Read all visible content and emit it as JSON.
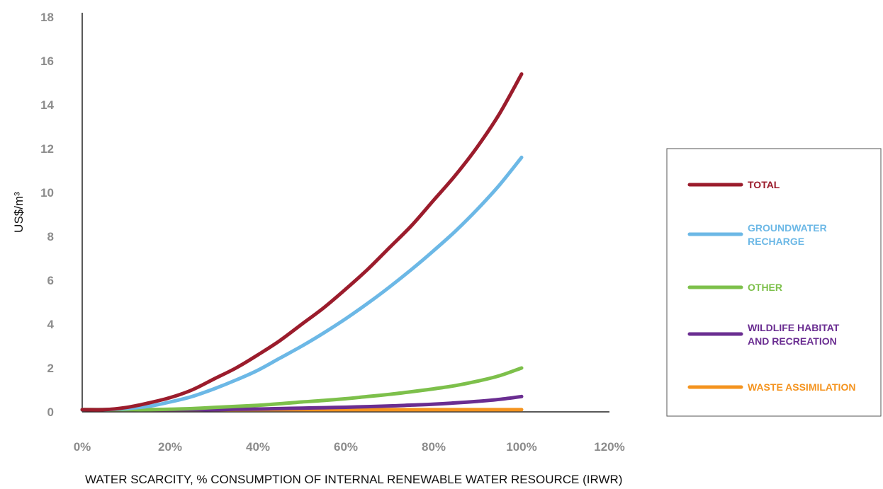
{
  "chart_data": {
    "type": "line",
    "title": "",
    "xlabel": "WATER SCARCITY, % CONSUMPTION OF INTERNAL RENEWABLE WATER RESOURCE (IRWR)",
    "ylabel": "US$/m³",
    "xlim": [
      0,
      120
    ],
    "ylim": [
      0,
      18
    ],
    "x_tick_labels": [
      "0%",
      "20%",
      "40%",
      "60%",
      "80%",
      "100%",
      "120%"
    ],
    "y_tick_labels": [
      "0",
      "2",
      "4",
      "6",
      "8",
      "10",
      "12",
      "14",
      "16",
      "18"
    ],
    "grid": false,
    "legend_position": "right",
    "x": [
      0,
      5,
      10,
      15,
      20,
      25,
      30,
      35,
      40,
      45,
      50,
      55,
      60,
      65,
      70,
      75,
      80,
      85,
      90,
      95,
      100
    ],
    "series": [
      {
        "name": "TOTAL",
        "label_lines": [
          "TOTAL"
        ],
        "color": "#9b1c2c",
        "values": [
          0.1,
          0.1,
          0.2,
          0.4,
          0.65,
          1.0,
          1.5,
          2.0,
          2.6,
          3.25,
          4.0,
          4.75,
          5.6,
          6.5,
          7.5,
          8.5,
          9.65,
          10.8,
          12.1,
          13.6,
          15.4
        ]
      },
      {
        "name": "GROUNDWATER RECHARGE",
        "label_lines": [
          "GROUNDWATER",
          "RECHARGE"
        ],
        "color": "#6cb8e6",
        "values": [
          0.1,
          0.1,
          0.15,
          0.25,
          0.45,
          0.7,
          1.05,
          1.45,
          1.9,
          2.45,
          3.0,
          3.6,
          4.25,
          4.95,
          5.7,
          6.5,
          7.35,
          8.25,
          9.25,
          10.35,
          11.6
        ]
      },
      {
        "name": "OTHER",
        "label_lines": [
          "OTHER"
        ],
        "color": "#7dc04b",
        "values": [
          0.1,
          0.1,
          0.1,
          0.1,
          0.12,
          0.15,
          0.2,
          0.25,
          0.3,
          0.37,
          0.45,
          0.52,
          0.6,
          0.7,
          0.8,
          0.92,
          1.05,
          1.2,
          1.4,
          1.65,
          2.0
        ]
      },
      {
        "name": "WILDLIFE HABITAT AND RECREATION",
        "label_lines": [
          "WILDLIFE HABITAT",
          "AND RECREATION"
        ],
        "color": "#6a2d91",
        "values": [
          0.1,
          0.1,
          0.1,
          0.1,
          0.1,
          0.1,
          0.1,
          0.12,
          0.13,
          0.15,
          0.17,
          0.19,
          0.21,
          0.24,
          0.27,
          0.31,
          0.35,
          0.41,
          0.48,
          0.57,
          0.7
        ]
      },
      {
        "name": "WASTE ASSIMILATION",
        "label_lines": [
          "WASTE ASSIMILATION"
        ],
        "color": "#f4931e",
        "values": [
          0.1,
          0.1,
          0.1,
          0.1,
          0.1,
          0.1,
          0.1,
          0.1,
          0.1,
          0.1,
          0.1,
          0.1,
          0.1,
          0.1,
          0.1,
          0.1,
          0.1,
          0.1,
          0.1,
          0.1,
          0.1
        ]
      }
    ]
  }
}
